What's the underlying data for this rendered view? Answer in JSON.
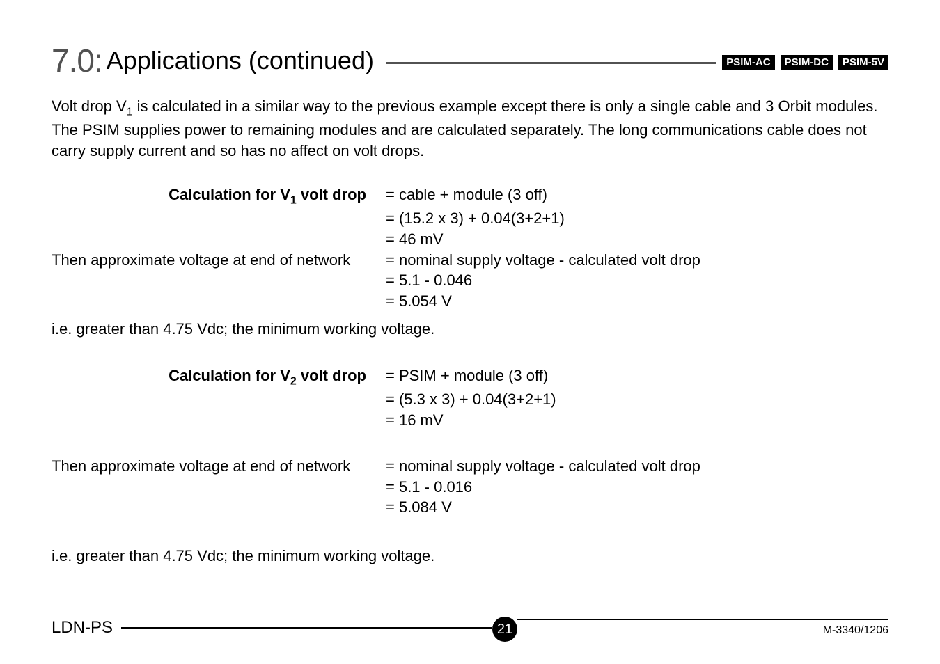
{
  "header": {
    "section_number": "7.0:",
    "title": "Applications (continued)",
    "badges": [
      "PSIM-AC",
      "PSIM-DC",
      "PSIM-5V"
    ]
  },
  "intro": {
    "pre": "Volt drop V",
    "sub": "1",
    "post": " is calculated in a similar way to the previous example except there is only a single cable and 3 Orbit modules. The PSIM supplies power to remaining modules and are calculated separately. The long communications cable does not carry supply current and so has no affect on volt drops."
  },
  "calc1": {
    "label_pre": "Calculation for V",
    "label_sub": "1",
    "label_post": " volt drop",
    "r1": "= cable + module (3 off)",
    "r2": "= (15.2 x 3) + 0.04(3+2+1)",
    "r3": "= 46 mV",
    "approx_label": "Then approximate voltage at end of network",
    "r4": "= nominal supply voltage - calculated volt drop",
    "r5": "= 5.1 - 0.046",
    "r6": "= 5.054 V",
    "note": "i.e. greater than 4.75 Vdc; the minimum working voltage."
  },
  "calc2": {
    "label_pre": "Calculation for V",
    "label_sub": "2",
    "label_post": " volt drop",
    "r1": "= PSIM + module (3 off)",
    "r2": "= (5.3 x 3) + 0.04(3+2+1)",
    "r3": "= 16 mV",
    "approx_label": "Then approximate voltage at end of network",
    "r4": "= nominal supply voltage - calculated volt drop",
    "r5": "= 5.1 - 0.016",
    "r6": "= 5.084 V",
    "note": "i.e. greater than 4.75 Vdc; the minimum working voltage."
  },
  "footer": {
    "left": "LDN-PS",
    "page": "21",
    "doc": "M-3340/1206"
  }
}
